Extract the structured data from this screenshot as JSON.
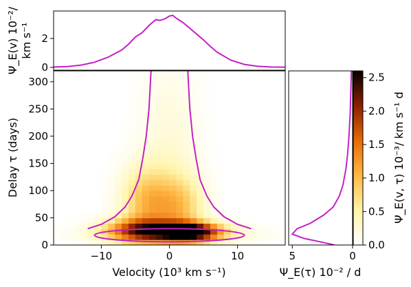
{
  "chart_data": [
    {
      "type": "line",
      "panel": "top-marginal",
      "ylabel_line1": "Ψ_E(v) 10⁻²/",
      "ylabel_line2": "km s⁻¹",
      "xlim": [
        -17,
        17
      ],
      "ylim": [
        -0.2,
        3.9
      ],
      "yticks": [
        "0",
        "2"
      ],
      "ytick_values": [
        0,
        2
      ],
      "color": "#c41fc7",
      "series": [
        {
          "x": [
            -17,
            -15,
            -13,
            -11,
            -9,
            -7,
            -6,
            -5,
            -4,
            -3,
            -2.5,
            -2,
            -1.5,
            -1,
            -0.5,
            0,
            0.5,
            1,
            1.5,
            2,
            3,
            4,
            5,
            6,
            7,
            9,
            11,
            13,
            15,
            17
          ],
          "y": [
            0.02,
            0.05,
            0.15,
            0.35,
            0.7,
            1.2,
            1.6,
            2.1,
            2.4,
            2.9,
            3.1,
            3.3,
            3.25,
            3.3,
            3.4,
            3.55,
            3.6,
            3.4,
            3.25,
            3.1,
            2.7,
            2.3,
            1.9,
            1.45,
            1.05,
            0.5,
            0.2,
            0.07,
            0.02,
            0.01
          ]
        }
      ]
    },
    {
      "type": "heatmap",
      "panel": "main",
      "xlabel": "Velocity (10³ km s⁻¹)",
      "ylabel": "Delay τ (days)",
      "xlim": [
        -17,
        17
      ],
      "ylim": [
        0,
        320
      ],
      "xticks": [
        "−10",
        "0",
        "10"
      ],
      "xtick_values": [
        -10,
        0,
        10
      ],
      "yticks": [
        "0",
        "50",
        "100",
        "150",
        "200",
        "250",
        "300"
      ],
      "ytick_values": [
        0,
        50,
        100,
        150,
        200,
        250,
        300
      ],
      "colormap": "afmhot_r",
      "overlay_curves": [
        {
          "name": "virial envelope left",
          "x": [
            -2.7,
            -3.0,
            -3.4,
            -3.9,
            -4.5,
            -5.5,
            -6.5,
            -8.0,
            -10.0,
            -12.0
          ],
          "y": [
            320,
            250,
            200,
            160,
            120,
            90,
            70,
            52,
            38,
            30
          ]
        },
        {
          "name": "virial envelope right",
          "x": [
            2.7,
            3.0,
            3.4,
            3.9,
            4.5,
            5.5,
            6.5,
            8.0,
            10.0,
            12.0
          ],
          "y": [
            320,
            250,
            200,
            160,
            120,
            90,
            70,
            52,
            38,
            30
          ]
        },
        {
          "name": "ellipse",
          "cx": 0,
          "cy": 18,
          "rx": 11,
          "ry": 12
        }
      ],
      "blobs": [
        {
          "cx": 3,
          "cy": 25,
          "sx": 3.2,
          "sy": 12,
          "amp": 2.6
        },
        {
          "cx": -4.5,
          "cy": 28,
          "sx": 3.5,
          "sy": 15,
          "amp": 1.6
        },
        {
          "cx": -3.5,
          "cy": 80,
          "sx": 2.5,
          "sy": 45,
          "amp": 0.9
        },
        {
          "cx": 1.5,
          "cy": 70,
          "sx": 2.5,
          "sy": 40,
          "amp": 0.8
        },
        {
          "cx": 0,
          "cy": 160,
          "sx": 3.0,
          "sy": 120,
          "amp": 0.25
        },
        {
          "cx": 0,
          "cy": 20,
          "sx": 8,
          "sy": 12,
          "amp": 0.45
        }
      ]
    },
    {
      "type": "line",
      "panel": "right-marginal",
      "xlabel": "Ψ_E(τ) 10⁻² / d",
      "xlim": [
        5.3,
        0
      ],
      "xticks": [
        "5",
        "0"
      ],
      "xtick_values": [
        5,
        0
      ],
      "series": [
        {
          "x": [
            1.5,
            2.5,
            4.0,
            5.0,
            4.6,
            3.5,
            2.4,
            1.6,
            1.1,
            0.8,
            0.55,
            0.4,
            0.3,
            0.2,
            0.15,
            0.1
          ],
          "y": [
            0,
            5,
            12,
            20,
            30,
            40,
            55,
            70,
            90,
            110,
            140,
            170,
            200,
            240,
            280,
            320
          ]
        }
      ]
    },
    {
      "type": "colorbar",
      "panel": "colorbar",
      "label": "Ψ_E(v, τ) 10⁻³/ km s⁻¹ d",
      "range": [
        0,
        2.6
      ],
      "ticks": [
        "0.0",
        "0.5",
        "1.0",
        "1.5",
        "2.0",
        "2.5"
      ],
      "tick_values": [
        0,
        0.5,
        1.0,
        1.5,
        2.0,
        2.5
      ]
    }
  ]
}
